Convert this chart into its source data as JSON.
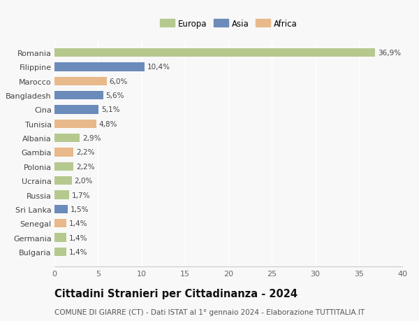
{
  "categories": [
    "Romania",
    "Filippine",
    "Marocco",
    "Bangladesh",
    "Cina",
    "Tunisia",
    "Albania",
    "Gambia",
    "Polonia",
    "Ucraina",
    "Russia",
    "Sri Lanka",
    "Senegal",
    "Germania",
    "Bulgaria"
  ],
  "values": [
    36.9,
    10.4,
    6.0,
    5.6,
    5.1,
    4.8,
    2.9,
    2.2,
    2.2,
    2.0,
    1.7,
    1.5,
    1.4,
    1.4,
    1.4
  ],
  "labels": [
    "36,9%",
    "10,4%",
    "6,0%",
    "5,6%",
    "5,1%",
    "4,8%",
    "2,9%",
    "2,2%",
    "2,2%",
    "2,0%",
    "1,7%",
    "1,5%",
    "1,4%",
    "1,4%",
    "1,4%"
  ],
  "continents": [
    "Europa",
    "Asia",
    "Africa",
    "Asia",
    "Asia",
    "Africa",
    "Europa",
    "Africa",
    "Europa",
    "Europa",
    "Europa",
    "Asia",
    "Africa",
    "Europa",
    "Europa"
  ],
  "colors": {
    "Europa": "#b5c98e",
    "Asia": "#6b8cba",
    "Africa": "#e8b98a"
  },
  "xlim": [
    0,
    40
  ],
  "xticks": [
    0,
    5,
    10,
    15,
    20,
    25,
    30,
    35,
    40
  ],
  "title": "Cittadini Stranieri per Cittadinanza - 2024",
  "subtitle": "COMUNE DI GIARRE (CT) - Dati ISTAT al 1° gennaio 2024 - Elaborazione TUTTITALIA.IT",
  "background_color": "#f8f8f8",
  "grid_color": "#ffffff",
  "bar_height": 0.6,
  "label_fontsize": 7.5,
  "ylabel_fontsize": 8.0,
  "xlabel_fontsize": 8.0,
  "title_fontsize": 10.5,
  "subtitle_fontsize": 7.5,
  "legend_fontsize": 8.5
}
